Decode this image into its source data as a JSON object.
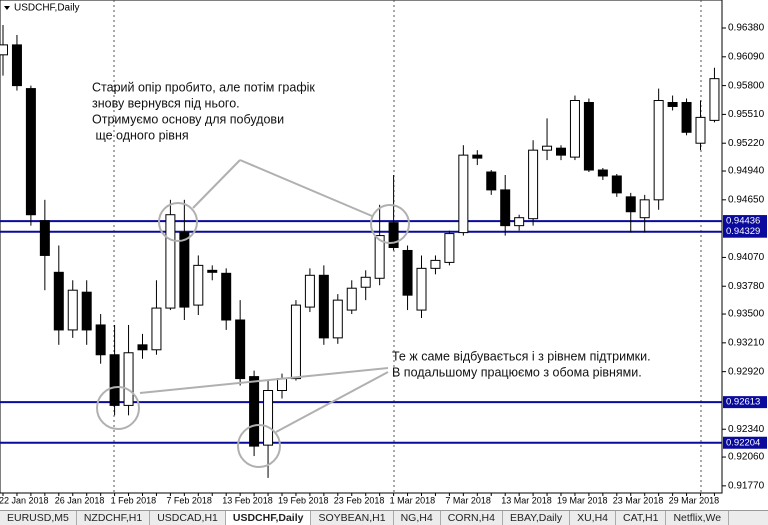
{
  "chart_data": {
    "type": "candlestick",
    "title": "USDCHF,Daily",
    "categories": [
      "22 Jan 2018",
      null,
      null,
      null,
      "26 Jan 2018",
      null,
      null,
      null,
      "1 Feb 2018",
      null,
      null,
      null,
      "7 Feb 2018",
      null,
      null,
      null,
      "13 Feb 2018",
      null,
      null,
      null,
      "19 Feb 2018",
      null,
      null,
      null,
      "23 Feb 2018",
      null,
      null,
      null,
      "1 Mar 2018",
      null,
      null,
      null,
      "7 Mar 2018",
      null,
      null,
      null,
      "13 Mar 2018",
      null,
      null,
      null,
      "19 Mar 2018",
      null,
      null,
      null,
      "23 Mar 2018",
      null,
      null,
      null,
      "29 Mar 2018",
      null,
      null,
      null
    ],
    "open": [
      0.9611,
      0.9621,
      0.9577,
      0.9444,
      0.9392,
      0.9334,
      0.9372,
      0.9339,
      0.9309,
      0.9258,
      0.9319,
      0.9314,
      0.9356,
      0.9432,
      0.9359,
      0.9394,
      0.9391,
      0.9344,
      0.9287,
      0.9218,
      0.9273,
      0.9285,
      0.9357,
      0.9389,
      0.9326,
      0.9354,
      0.9377,
      0.9386,
      0.9442,
      0.9414,
      0.9354,
      0.9396,
      0.9402,
      0.9432,
      0.951,
      0.9493,
      0.9475,
      0.9439,
      0.9446,
      0.9515,
      0.9517,
      0.9508,
      0.9563,
      0.9495,
      0.9489,
      0.9468,
      0.9447,
      0.9465,
      0.9563,
      0.9563,
      0.9522,
      0.9545
    ],
    "high": [
      0.9641,
      0.9631,
      0.958,
      0.9465,
      0.9419,
      0.9384,
      0.9384,
      0.935,
      0.9339,
      0.9339,
      0.933,
      0.9384,
      0.9465,
      0.9465,
      0.9409,
      0.9399,
      0.9396,
      0.9364,
      0.9293,
      0.9283,
      0.929,
      0.9364,
      0.9396,
      0.9399,
      0.937,
      0.9384,
      0.9394,
      0.946,
      0.949,
      0.9419,
      0.9409,
      0.9409,
      0.9434,
      0.952,
      0.9515,
      0.9495,
      0.949,
      0.945,
      0.9525,
      0.9547,
      0.952,
      0.957,
      0.9567,
      0.9497,
      0.9491,
      0.9472,
      0.947,
      0.9577,
      0.957,
      0.9567,
      0.9565,
      0.9598
    ],
    "low": [
      0.959,
      0.9575,
      0.9439,
      0.9374,
      0.9319,
      0.9326,
      0.9319,
      0.93,
      0.9248,
      0.9248,
      0.9305,
      0.9309,
      0.9354,
      0.9344,
      0.9349,
      0.9384,
      0.9334,
      0.9278,
      0.9207,
      0.9185,
      0.9265,
      0.9283,
      0.9352,
      0.9319,
      0.932,
      0.935,
      0.9364,
      0.9379,
      0.9414,
      0.9354,
      0.9346,
      0.939,
      0.9399,
      0.9429,
      0.95,
      0.947,
      0.9429,
      0.9434,
      0.9439,
      0.9505,
      0.9505,
      0.9505,
      0.9493,
      0.9485,
      0.9468,
      0.9432,
      0.9432,
      0.9455,
      0.9555,
      0.953,
      0.9515,
      0.9543
    ],
    "close": [
      0.9621,
      0.958,
      0.945,
      0.9409,
      0.9334,
      0.9374,
      0.9334,
      0.9309,
      0.9258,
      0.9311,
      0.9314,
      0.9356,
      0.945,
      0.9357,
      0.9399,
      0.9392,
      0.9344,
      0.9285,
      0.9217,
      0.9273,
      0.9285,
      0.9359,
      0.9389,
      0.9326,
      0.9364,
      0.9376,
      0.9387,
      0.9429,
      0.9417,
      0.9369,
      0.9396,
      0.9404,
      0.9431,
      0.951,
      0.9507,
      0.9475,
      0.9439,
      0.9447,
      0.9515,
      0.9519,
      0.951,
      0.9565,
      0.9495,
      0.9489,
      0.9472,
      0.9453,
      0.9465,
      0.9565,
      0.9559,
      0.9533,
      0.9548,
      0.9587
    ],
    "up_color": "#ffffff",
    "down_color": "#000000",
    "ylim": [
      0.91698,
      0.96662
    ],
    "yticks": [
      {
        "value": 0.9638,
        "label": "0.96380"
      },
      {
        "value": 0.9609,
        "label": "0.96090"
      },
      {
        "value": 0.958,
        "label": "0.95800"
      },
      {
        "value": 0.9551,
        "label": "0.95510"
      },
      {
        "value": 0.9522,
        "label": "0.95220"
      },
      {
        "value": 0.9494,
        "label": "0.94940"
      },
      {
        "value": 0.9465,
        "label": "0.94650"
      },
      {
        "value": 0.9407,
        "label": "0.94070"
      },
      {
        "value": 0.9378,
        "label": "0.93780"
      },
      {
        "value": 0.935,
        "label": "0.93500"
      },
      {
        "value": 0.9321,
        "label": "0.93210"
      },
      {
        "value": 0.9292,
        "label": "0.92920"
      },
      {
        "value": 0.9234,
        "label": "0.92340"
      },
      {
        "value": 0.9206,
        "label": "0.92060"
      },
      {
        "value": 0.9177,
        "label": "0.91770"
      }
    ],
    "levels": [
      0.94436,
      0.94329,
      0.92613,
      0.92204
    ],
    "level_color": "#0a0a9c",
    "annotations": [
      [
        "Старий опір пробито, але потім графік",
        "знову вернувся під нього.",
        "Отримуємо основу для побудови",
        " ще одного рівня"
      ],
      [
        "Те ж саме відбувається і з рівнем підтримки.",
        "В подальшому працюємо з обома рівнями."
      ]
    ]
  },
  "tabs": [
    "EURUSD,M5",
    "NZDCHF,H1",
    "USDCAD,H1",
    "USDCHF,Daily",
    "SOYBEAN,H1",
    "NG,H4",
    "CORN,H4",
    "EBAY,Daily",
    "XU,H4",
    "CAT,H1",
    "Netflix,We"
  ],
  "active_tab": 3
}
